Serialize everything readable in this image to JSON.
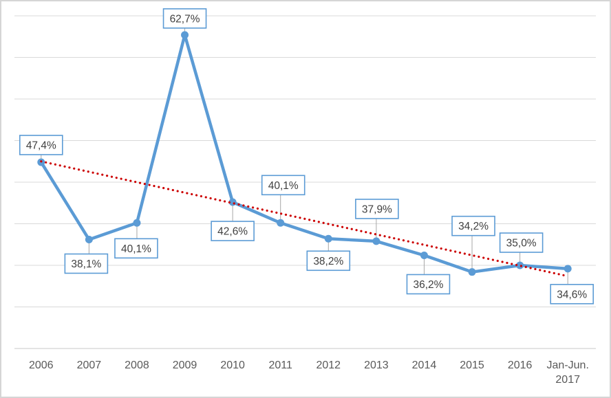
{
  "chart_data": {
    "type": "line",
    "title": "",
    "categories": [
      "2006",
      "2007",
      "2008",
      "2009",
      "2010",
      "2011",
      "2012",
      "2013",
      "2014",
      "2015",
      "2016",
      "Jan-Jun.\n2017"
    ],
    "series": [
      {
        "name": "percentage-series",
        "color": "#5B9BD5",
        "values": [
          47.4,
          38.1,
          40.1,
          62.7,
          42.6,
          40.1,
          38.2,
          37.9,
          36.2,
          34.2,
          35.0,
          34.6
        ],
        "labels": [
          "47,4%",
          "38,1%",
          "40,1%",
          "62,7%",
          "42,6%",
          "40,1%",
          "38,2%",
          "37,9%",
          "36,2%",
          "34,2%",
          "35,0%",
          "34,6%"
        ]
      }
    ],
    "trendline": {
      "type": "linear",
      "style": "round-dot",
      "color": "#CC0000",
      "start_value": 47.5,
      "end_value": 33.7
    },
    "xlabel": "",
    "ylabel": "",
    "ylim": [
      25,
      65
    ],
    "grid": true,
    "grid_step": 5,
    "legend_position": "none",
    "y_axis_labels_visible": false,
    "label_placement": [
      {
        "side": "above",
        "gap": 11,
        "dx": 0
      },
      {
        "side": "below",
        "gap": 21,
        "dx": -4
      },
      {
        "side": "below",
        "gap": 23,
        "dx": -1
      },
      {
        "side": "above",
        "gap": 10,
        "dx": 0
      },
      {
        "side": "below",
        "gap": 28,
        "dx": 0
      },
      {
        "side": "above",
        "gap": 41,
        "dx": 4
      },
      {
        "side": "below",
        "gap": 18,
        "dx": 0
      },
      {
        "side": "above",
        "gap": 33,
        "dx": 1
      },
      {
        "side": "below",
        "gap": 28,
        "dx": 6
      },
      {
        "side": "above",
        "gap": 53,
        "dx": 2
      },
      {
        "side": "above",
        "gap": 19,
        "dx": 2
      },
      {
        "side": "below",
        "gap": 23,
        "dx": 6
      }
    ],
    "colors": {
      "background": "#FFFFFF",
      "outer_border": "#D5D5D5",
      "gridline": "#D9D9D9",
      "axis_line": "#C9C9C9",
      "axis_text": "#595959",
      "label_text": "#404040",
      "label_box_fill": "#FFFFFF",
      "label_box_border": "#5B9BD5",
      "leader_line": "#A6A6A6"
    }
  }
}
